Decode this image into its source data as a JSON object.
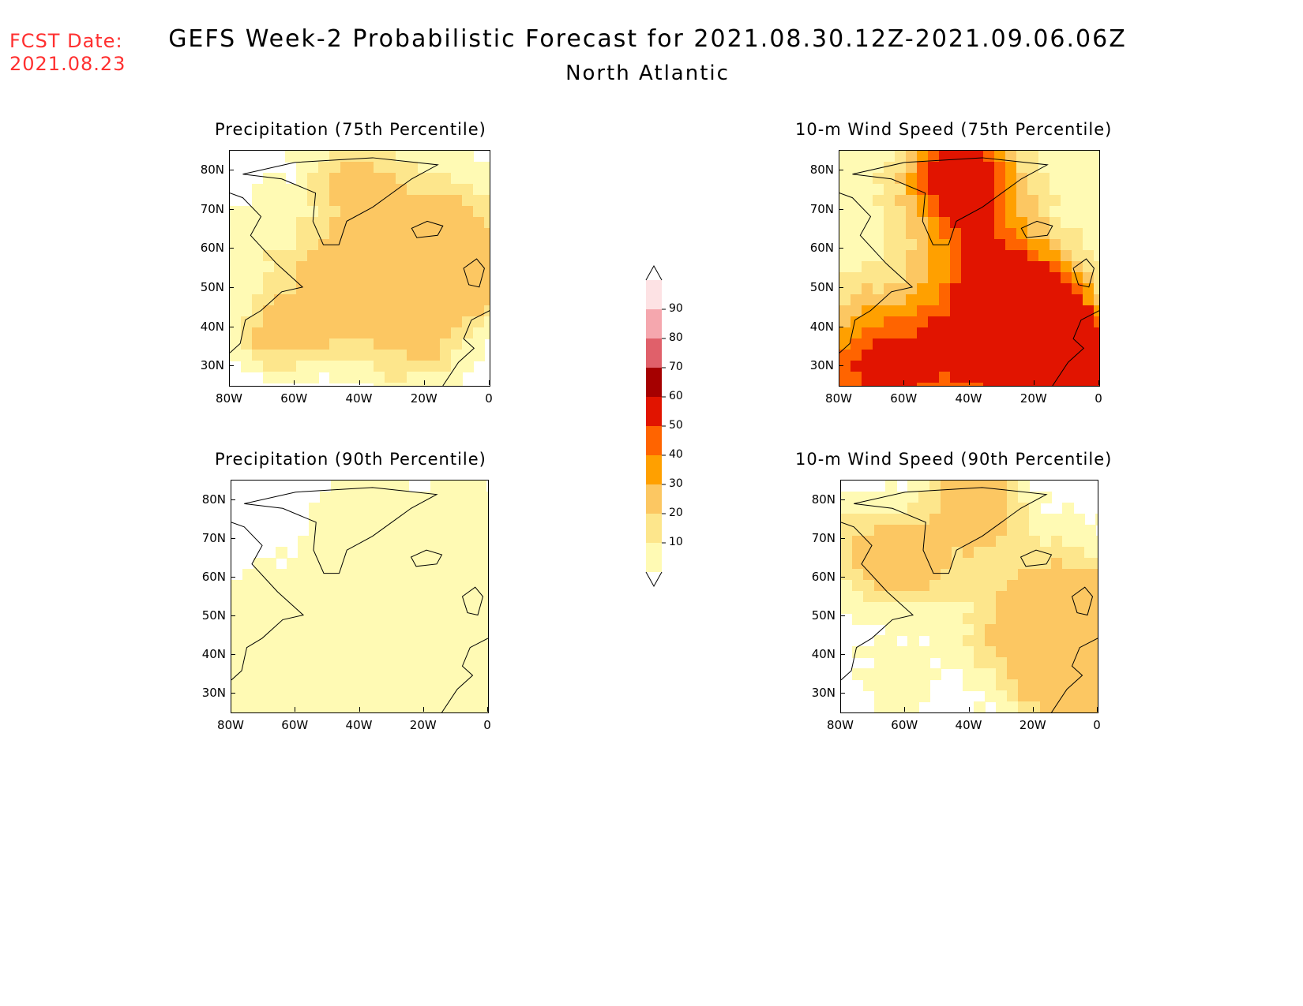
{
  "header": {
    "fcst_label": "FCST Date:",
    "fcst_date": "2021.08.23",
    "title": "GEFS Week-2 Probabilistic Forecast for 2021.08.30.12Z-2021.09.06.06Z",
    "subtitle": "North Atlantic"
  },
  "panels": [
    {
      "id": "precip75",
      "title": "Precipitation (75th Percentile)",
      "intensity": 2
    },
    {
      "id": "wind75",
      "title": "10-m Wind Speed (75th Percentile)",
      "intensity": 4
    },
    {
      "id": "precip90",
      "title": "Precipitation (90th Percentile)",
      "intensity": 1
    },
    {
      "id": "wind90",
      "title": "10-m Wind Speed (90th Percentile)",
      "intensity": 2
    }
  ],
  "axes": {
    "lat_ticks": [
      "80N",
      "70N",
      "60N",
      "50N",
      "40N",
      "30N"
    ],
    "lon_ticks": [
      "80W",
      "60W",
      "40W",
      "20W",
      "0"
    ]
  },
  "colorbar": {
    "levels": [
      "10",
      "20",
      "30",
      "40",
      "50",
      "60",
      "70",
      "80",
      "90"
    ],
    "colors": [
      "#fffab4",
      "#fde68c",
      "#fcc762",
      "#ffa000",
      "#ff6400",
      "#e11400",
      "#a50000",
      "#e0606a",
      "#f5a7ae",
      "#fde2e4"
    ]
  }
}
